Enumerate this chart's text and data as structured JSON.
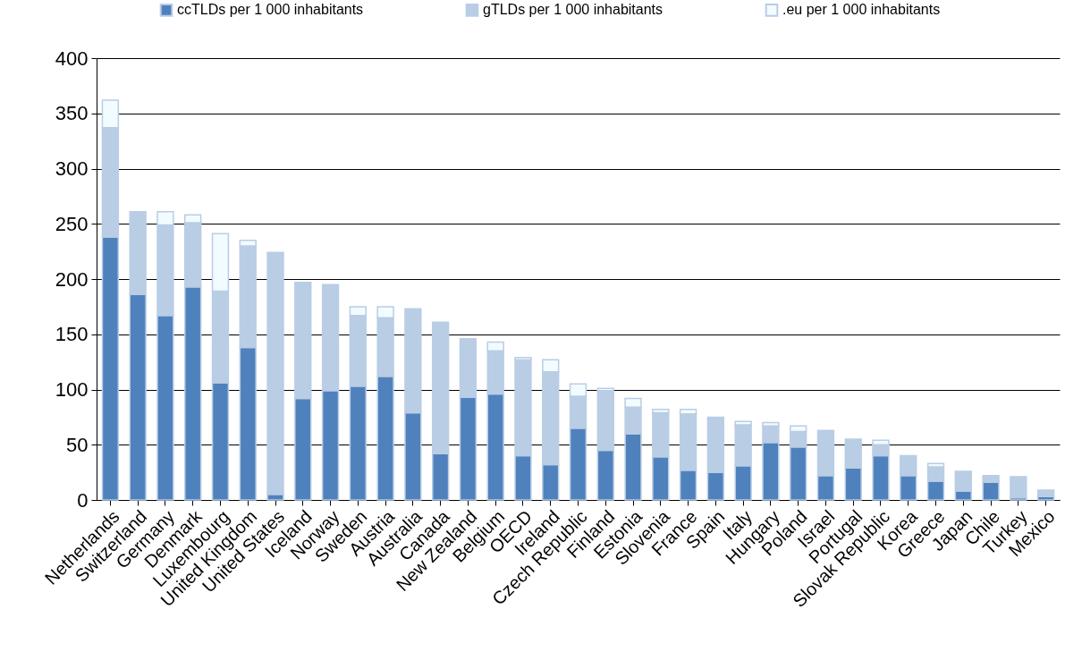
{
  "chart_data": {
    "type": "bar",
    "stacked": true,
    "categories": [
      "Netherlands",
      "Switzerland",
      "Germany",
      "Denmark",
      "Luxembourg",
      "United Kingdom",
      "United States",
      "Iceland",
      "Norway",
      "Sweden",
      "Austria",
      "Australia",
      "Canada",
      "New Zealand",
      "Belgium",
      "OECD",
      "Ireland",
      "Czech Republic",
      "Finland",
      "Estonia",
      "Slovenia",
      "France",
      "Spain",
      "Italy",
      "Hungary",
      "Poland",
      "Israel",
      "Portugal",
      "Slovak Republic",
      "Korea",
      "Greece",
      "Japan",
      "Chile",
      "Turkey",
      "Mexico"
    ],
    "series": [
      {
        "name": "ccTLDs per 1 000 inhabitants",
        "color": "#4f81bd",
        "values": [
          238,
          186,
          167,
          193,
          106,
          138,
          5,
          92,
          99,
          103,
          112,
          79,
          42,
          93,
          96,
          40,
          32,
          65,
          45,
          60,
          39,
          27,
          25,
          31,
          52,
          48,
          22,
          29,
          40,
          22,
          17,
          8,
          16,
          2,
          3
        ]
      },
      {
        "name": "gTLDs per 1 000 inhabitants",
        "color": "#b9cde5",
        "values": [
          99,
          75,
          82,
          58,
          83,
          92,
          219,
          105,
          96,
          64,
          53,
          94,
          119,
          53,
          39,
          87,
          84,
          29,
          54,
          24,
          40,
          51,
          50,
          37,
          15,
          14,
          41,
          26,
          10,
          18,
          13,
          18,
          6,
          19,
          6
        ]
      },
      {
        "name": ".eu per 1 000 inhabitants",
        "color": "#f2fbff",
        "values": [
          25,
          null,
          12,
          7,
          52,
          5,
          null,
          null,
          null,
          8,
          10,
          null,
          null,
          null,
          8,
          2,
          11,
          11,
          2,
          8,
          3,
          4,
          null,
          3,
          3,
          5,
          null,
          null,
          4,
          null,
          3,
          null,
          null,
          null,
          null
        ]
      }
    ],
    "ylim": [
      0,
      400
    ],
    "yticks": [
      0,
      50,
      100,
      150,
      200,
      250,
      300,
      350,
      400
    ],
    "grid": "y",
    "legend": "top"
  }
}
